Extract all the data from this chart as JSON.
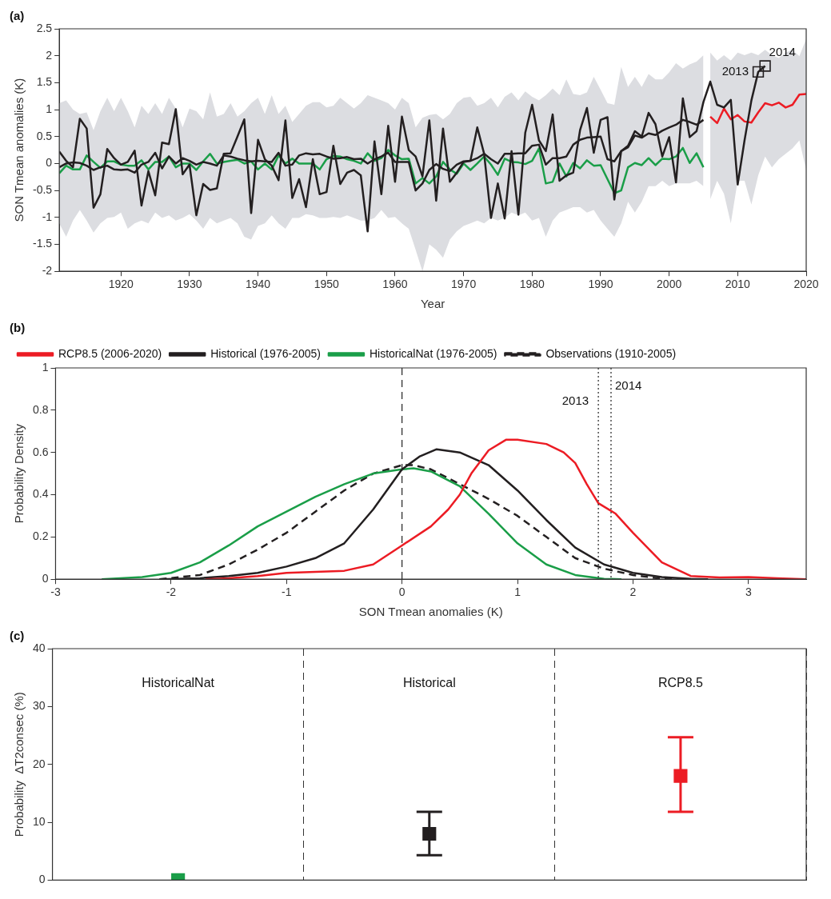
{
  "chart_data": [
    {
      "type": "line",
      "title": "(a)",
      "xlabel": "Year",
      "ylabel": "SON Tmean anomalies (K)",
      "xlim": [
        1911,
        2020
      ],
      "xticks": [
        1920,
        1930,
        1940,
        1950,
        1960,
        1970,
        1980,
        1990,
        2000,
        2010,
        2020
      ],
      "ylim": [
        -2,
        2.5
      ],
      "yticks": [
        -2,
        -1.5,
        -1,
        -0.5,
        0,
        0.5,
        1,
        1.5,
        2,
        2.5
      ],
      "series": [
        {
          "color": "#231f20",
          "x": [
            1911,
            1912,
            1913,
            1914,
            1915,
            1916,
            1917,
            1918,
            1919,
            1920,
            1921,
            1922,
            1923,
            1924,
            1925,
            1926,
            1927,
            1928,
            1929,
            1930,
            1931,
            1932,
            1933,
            1934,
            1935,
            1936,
            1937,
            1938,
            1939,
            1940,
            1941,
            1942,
            1943,
            1944,
            1945,
            1946,
            1947,
            1948,
            1949,
            1950,
            1951,
            1952,
            1953,
            1954,
            1955,
            1956,
            1957,
            1958,
            1959,
            1960,
            1961,
            1962,
            1963,
            1964,
            1965,
            1966,
            1967,
            1968,
            1969,
            1970,
            1971,
            1972,
            1973,
            1974,
            1975,
            1976,
            1977,
            1978,
            1979,
            1980,
            1981,
            1982,
            1983,
            1984,
            1985,
            1986,
            1987,
            1988,
            1989,
            1990,
            1991,
            1992,
            1993,
            1994,
            1995,
            1996,
            1997,
            1998,
            1999,
            2000,
            2001,
            2002,
            2003,
            2004,
            2005,
            2006,
            2007,
            2008,
            2009,
            2010,
            2011,
            2012,
            2013,
            2014
          ],
          "values": [
            0.22,
            0.05,
            -0.07,
            0.83,
            0.65,
            -0.82,
            -0.57,
            0.27,
            0.1,
            -0.02,
            0.03,
            0.24,
            -0.78,
            -0.14,
            -0.59,
            0.39,
            0.36,
            1.01,
            -0.2,
            -0.02,
            -0.96,
            -0.38,
            -0.49,
            -0.46,
            0.18,
            0.19,
            0.5,
            0.82,
            -0.92,
            0.44,
            0.08,
            -0.04,
            -0.31,
            0.8,
            -0.64,
            -0.29,
            -0.81,
            0.08,
            -0.57,
            -0.53,
            0.33,
            -0.38,
            -0.17,
            -0.12,
            -0.22,
            -1.26,
            0.41,
            -0.57,
            0.7,
            -0.34,
            0.87,
            0.25,
            0.13,
            -0.24,
            0.8,
            -0.69,
            0.65,
            -0.34,
            -0.17,
            0.03,
            0.05,
            0.67,
            0.18,
            -1.01,
            -0.37,
            -1.02,
            0.23,
            -0.95,
            0.57,
            1.09,
            0.43,
            0.23,
            0.91,
            -0.32,
            -0.22,
            -0.17,
            0.62,
            1.03,
            0.2,
            0.81,
            0.86,
            -0.67,
            0.23,
            0.33,
            0.6,
            0.5,
            0.94,
            0.73,
            0.13,
            0.49,
            -0.35,
            1.21,
            0.49,
            0.6,
            1.14,
            1.52,
            1.09,
            1.04,
            1.18,
            -0.39,
            0.43,
            1.17,
            1.7,
            1.81
          ]
        },
        {
          "color": "#231f20",
          "x": [
            1911,
            1912,
            1913,
            1914,
            1915,
            1916,
            1917,
            1918,
            1919,
            1920,
            1921,
            1922,
            1923,
            1924,
            1925,
            1926,
            1927,
            1928,
            1929,
            1930,
            1931,
            1932,
            1933,
            1934,
            1935,
            1936,
            1937,
            1938,
            1939,
            1940,
            1941,
            1942,
            1943,
            1944,
            1945,
            1946,
            1947,
            1948,
            1949,
            1950,
            1951,
            1952,
            1953,
            1954,
            1955,
            1956,
            1957,
            1958,
            1959,
            1960,
            1961,
            1962,
            1963,
            1964,
            1965,
            1966,
            1967,
            1968,
            1969,
            1970,
            1971,
            1972,
            1973,
            1974,
            1975,
            1976,
            1977,
            1978,
            1979,
            1980,
            1981,
            1982,
            1983,
            1984,
            1985,
            1986,
            1987,
            1988,
            1989,
            1990,
            1991,
            1992,
            1993,
            1994,
            1995,
            1996,
            1997,
            1998,
            1999,
            2000,
            2001,
            2002,
            2003,
            2004,
            2005
          ],
          "values": [
            -0.07,
            0,
            0.02,
            0.01,
            -0.04,
            -0.12,
            -0.07,
            -0.04,
            -0.11,
            -0.12,
            -0.11,
            -0.17,
            -0.02,
            0.03,
            0.2,
            -0.09,
            0.13,
            0,
            0.1,
            0.05,
            -0.02,
            0.03,
            0,
            -0.04,
            0.15,
            0.13,
            0.09,
            0.06,
            0.04,
            0.05,
            0.04,
            0.03,
            0.2,
            -0.04,
            -0.02,
            0.15,
            0.19,
            0.17,
            0.18,
            0.13,
            0.09,
            0.1,
            0.12,
            0.08,
            0.09,
            0,
            0.08,
            0.13,
            0.2,
            0.03,
            0.03,
            0.03,
            -0.5,
            -0.37,
            -0.12,
            -0.01,
            -0.1,
            -0.14,
            -0.02,
            0.04,
            0.05,
            0.1,
            0.18,
            0.08,
            0,
            0.18,
            0.18,
            0.19,
            0.19,
            0.33,
            0.35,
            -0.02,
            0.1,
            0.1,
            0.13,
            0.35,
            0.44,
            0.48,
            0.49,
            0.5,
            0.08,
            0.04,
            0.23,
            0.3,
            0.52,
            0.48,
            0.56,
            0.53,
            0.61,
            0.67,
            0.72,
            0.81,
            0.77,
            0.72,
            0.81
          ],
          "lower": [
            -1.11,
            -1.36,
            -1.06,
            -0.86,
            -1.06,
            -1.28,
            -1.11,
            -1.01,
            -0.99,
            -0.91,
            -1.21,
            -1.11,
            -1.06,
            -1.11,
            -0.91,
            -1.01,
            -0.96,
            -1.06,
            -1.01,
            -0.94,
            -1.06,
            -1.21,
            -1.01,
            -1.11,
            -1.06,
            -1.01,
            -1.11,
            -1.36,
            -1.41,
            -1.16,
            -1.11,
            -0.96,
            -1.11,
            -1.21,
            -1.01,
            -1.01,
            -0.94,
            -0.96,
            -1.01,
            -1.01,
            -0.99,
            -1.01,
            -0.96,
            -1.01,
            -1.06,
            -1.06,
            -1.01,
            -0.86,
            -1.01,
            -0.99,
            -1.11,
            -1.21,
            -1.6,
            -2,
            -1.5,
            -1.6,
            -1.75,
            -1.41,
            -1.26,
            -1.16,
            -1.11,
            -1.06,
            -1.11,
            -1.01,
            -1.06,
            -1.01,
            -0.91,
            -0.96,
            -0.91,
            -1.06,
            -1.01,
            -1.36,
            -1.06,
            -0.91,
            -0.86,
            -0.81,
            -0.81,
            -0.91,
            -0.86,
            -1.06,
            -1.21,
            -1.36,
            -1.11,
            -0.71,
            -0.91,
            -0.71,
            -0.42,
            -0.42,
            -0.32,
            -0.42,
            -0.37,
            -0.37,
            -0.37,
            -0.32,
            -0.42
          ],
          "upper": [
            1.12,
            1.17,
            1,
            0.92,
            0.95,
            0.62,
            0.97,
            1.22,
            0.97,
            1.22,
            0.97,
            0.67,
            1.07,
            0.92,
            1.12,
            0.92,
            1.22,
            1.02,
            0.67,
            1.02,
            0.97,
            0.82,
            1.32,
            0.87,
            0.92,
            1.12,
            0.87,
            0.97,
            1.12,
            1.22,
            0.92,
            1.27,
            0.92,
            1.07,
            0.77,
            0.92,
            1.07,
            1.14,
            1.14,
            1.04,
            1.07,
            1.22,
            1.12,
            1.02,
            1.12,
            1.27,
            1.22,
            1.17,
            1.12,
            1,
            1.22,
            1.12,
            0.67,
            0.85,
            0.9,
            0.92,
            0.82,
            0.92,
            1.12,
            1.22,
            1.24,
            1.07,
            1.12,
            1.22,
            1.04,
            1.24,
            1.32,
            1.17,
            1.34,
            1.24,
            1.17,
            1.27,
            1.39,
            1.27,
            1.56,
            1.29,
            1.27,
            1.32,
            1.61,
            1.37,
            1.12,
            1.09,
            1.79,
            1.42,
            1.61,
            1.42,
            1.66,
            1.56,
            1.56,
            1.69,
            1.86,
            1.76,
            1.84,
            1.89,
            2.01
          ]
        },
        {
          "color": "#1a9e48",
          "x": [
            1911,
            1912,
            1913,
            1914,
            1915,
            1916,
            1917,
            1918,
            1919,
            1920,
            1921,
            1922,
            1923,
            1924,
            1925,
            1926,
            1927,
            1928,
            1929,
            1930,
            1931,
            1932,
            1933,
            1934,
            1935,
            1936,
            1937,
            1938,
            1939,
            1940,
            1941,
            1942,
            1943,
            1944,
            1945,
            1946,
            1947,
            1948,
            1949,
            1950,
            1951,
            1952,
            1953,
            1954,
            1955,
            1956,
            1957,
            1958,
            1959,
            1960,
            1961,
            1962,
            1963,
            1964,
            1965,
            1966,
            1967,
            1968,
            1969,
            1970,
            1971,
            1972,
            1973,
            1974,
            1975,
            1976,
            1977,
            1978,
            1979,
            1980,
            1981,
            1982,
            1983,
            1984,
            1985,
            1986,
            1987,
            1988,
            1989,
            1990,
            1991,
            1992,
            1993,
            1994,
            1995,
            1996,
            1997,
            1998,
            1999,
            2000,
            2001,
            2002,
            2003,
            2004,
            2005
          ],
          "values": [
            -0.18,
            -0.04,
            -0.11,
            -0.11,
            0.15,
            0.03,
            -0.08,
            0.04,
            0.04,
            -0.02,
            -0.04,
            -0.04,
            0.06,
            -0.11,
            0.03,
            0.03,
            0.13,
            -0.07,
            0,
            0,
            -0.12,
            0.04,
            0.18,
            0,
            0.03,
            0.05,
            0.07,
            0,
            0.04,
            -0.11,
            0,
            -0.11,
            0.15,
            0,
            0.09,
            0,
            0,
            0,
            -0.11,
            0.08,
            0.14,
            0.13,
            0.08,
            0.05,
            0,
            0.19,
            0.05,
            0.1,
            0.25,
            0.15,
            0.08,
            0.09,
            -0.37,
            -0.27,
            -0.37,
            -0.24,
            0.03,
            -0.11,
            -0.19,
            0,
            -0.12,
            0,
            0.13,
            -0.02,
            -0.21,
            0.09,
            0.03,
            0.02,
            -0.01,
            0.05,
            0.28,
            -0.37,
            -0.34,
            0,
            -0.24,
            0.01,
            -0.09,
            0.06,
            -0.04,
            -0.03,
            -0.29,
            -0.55,
            -0.5,
            -0.07,
            0.01,
            -0.03,
            0.1,
            -0.03,
            0.09,
            0.08,
            0.13,
            0.29,
            0.01,
            0.19,
            -0.07
          ]
        },
        {
          "color": "#ec1c24",
          "x": [
            2006,
            2007,
            2008,
            2009,
            2010,
            2011,
            2012,
            2013,
            2014,
            2015,
            2016,
            2017,
            2018,
            2019,
            2020
          ],
          "values": [
            0.87,
            0.75,
            1.02,
            0.82,
            0.9,
            0.78,
            0.76,
            0.95,
            1.12,
            1.08,
            1.13,
            1.04,
            1.09,
            1.28,
            1.29
          ],
          "lower": [
            -0.66,
            -0.32,
            -0.56,
            -1.11,
            -0.32,
            -0.32,
            -0.76,
            -0.22,
            0.13,
            -0.07,
            0.08,
            0.18,
            0.28,
            0.43,
            -0.12
          ],
          "upper": [
            2.06,
            1.91,
            2.01,
            1.91,
            2.06,
            2.01,
            2.06,
            2.01,
            2.11,
            2.01,
            1.96,
            2.06,
            2.11,
            1.99,
            2.31
          ]
        },
        {
          "type": "scatter",
          "marker": "square",
          "color": "#231f20",
          "x": [
            2013,
            2014
          ],
          "values": [
            1.7,
            1.81
          ]
        }
      ],
      "annotations": [
        {
          "text": "2013",
          "x": 2013,
          "y": 1.7
        },
        {
          "text": "2014",
          "x": 2014,
          "y": 1.81
        }
      ]
    },
    {
      "type": "line",
      "title": "(b)",
      "xlabel": "SON Tmean anomalies (K)",
      "ylabel": "Probability Density",
      "xlim": [
        -3,
        3.5
      ],
      "xticks": [
        -3,
        -2,
        -1,
        0,
        1,
        2,
        3
      ],
      "ylim": [
        0,
        1
      ],
      "yticks": [
        0,
        0.2,
        0.4,
        0.6,
        0.8,
        1
      ],
      "legend": "top left",
      "series": [
        {
          "name": "RCP8.5 (2006-2020)",
          "color": "#ec1c24",
          "x": [
            -1.7,
            -1.5,
            -1.25,
            -1,
            -0.75,
            -0.5,
            -0.25,
            0,
            0.25,
            0.4,
            0.5,
            0.6,
            0.75,
            0.9,
            1,
            1.25,
            1.4,
            1.5,
            1.6,
            1.7,
            1.85,
            2,
            2.25,
            2.5,
            2.75,
            3,
            3.25,
            3.5
          ],
          "values": [
            0,
            0.005,
            0.015,
            0.03,
            0.035,
            0.04,
            0.07,
            0.16,
            0.25,
            0.33,
            0.4,
            0.5,
            0.61,
            0.66,
            0.66,
            0.64,
            0.6,
            0.55,
            0.45,
            0.36,
            0.31,
            0.22,
            0.08,
            0.015,
            0.008,
            0.01,
            0.005,
            0
          ]
        },
        {
          "name": "Historical (1976-2005)",
          "color": "#231f20",
          "x": [
            -2.1,
            -1.75,
            -1.5,
            -1.25,
            -1,
            -0.75,
            -0.5,
            -0.25,
            0,
            0.15,
            0.3,
            0.5,
            0.75,
            1,
            1.25,
            1.5,
            1.75,
            2,
            2.25,
            2.5,
            2.65
          ],
          "values": [
            0,
            0.005,
            0.015,
            0.03,
            0.06,
            0.1,
            0.17,
            0.33,
            0.52,
            0.58,
            0.615,
            0.6,
            0.54,
            0.42,
            0.28,
            0.15,
            0.07,
            0.03,
            0.01,
            0.002,
            0
          ]
        },
        {
          "name": "HistoricalNat (1976-2005)",
          "color": "#1a9e48",
          "x": [
            -2.6,
            -2.25,
            -2,
            -1.75,
            -1.5,
            -1.25,
            -1,
            -0.75,
            -0.5,
            -0.25,
            0,
            0.1,
            0.25,
            0.5,
            0.75,
            1,
            1.25,
            1.5,
            1.75,
            1.9
          ],
          "values": [
            0,
            0.01,
            0.03,
            0.08,
            0.16,
            0.25,
            0.32,
            0.39,
            0.45,
            0.5,
            0.52,
            0.525,
            0.51,
            0.44,
            0.31,
            0.17,
            0.07,
            0.02,
            0.002,
            0
          ]
        },
        {
          "name": "Observations (1910-2005)",
          "color": "#231f20",
          "line_style": "dashed",
          "x": [
            -2.1,
            -1.75,
            -1.5,
            -1.25,
            -1,
            -0.75,
            -0.5,
            -0.25,
            0,
            0.1,
            0.25,
            0.5,
            0.75,
            1,
            1.25,
            1.5,
            1.75,
            2,
            2.25,
            2.4
          ],
          "values": [
            0,
            0.02,
            0.07,
            0.14,
            0.22,
            0.32,
            0.42,
            0.5,
            0.54,
            0.54,
            0.52,
            0.45,
            0.38,
            0.3,
            0.2,
            0.1,
            0.05,
            0.02,
            0.002,
            0
          ]
        }
      ],
      "ref_lines": [
        {
          "axis": "x",
          "value": 0,
          "line_style": "dashed"
        },
        {
          "axis": "x",
          "value": 1.7,
          "line_style": "dotted"
        },
        {
          "axis": "x",
          "value": 1.81,
          "line_style": "dotted"
        }
      ],
      "annotations": [
        {
          "text": "2013",
          "x": 1.7,
          "y": 0.84
        },
        {
          "text": "2014",
          "x": 1.81,
          "y": 0.85
        }
      ]
    },
    {
      "type": "scatter",
      "title": "(c)",
      "ylabel": "Probability  ΔT2consec (%)",
      "categories": [
        "HistoricalNat",
        "Historical",
        "RCP8.5"
      ],
      "values": [
        0,
        8,
        18
      ],
      "colors": [
        "#1a9e48",
        "#231f20",
        "#ec1c24"
      ],
      "errors": [
        null,
        [
          4.3,
          11.8
        ],
        [
          11.8,
          24.7
        ]
      ],
      "marker": "square",
      "ylim": [
        0,
        40
      ],
      "yticks": [
        0,
        10,
        20,
        30,
        40
      ],
      "grid": "x"
    }
  ]
}
